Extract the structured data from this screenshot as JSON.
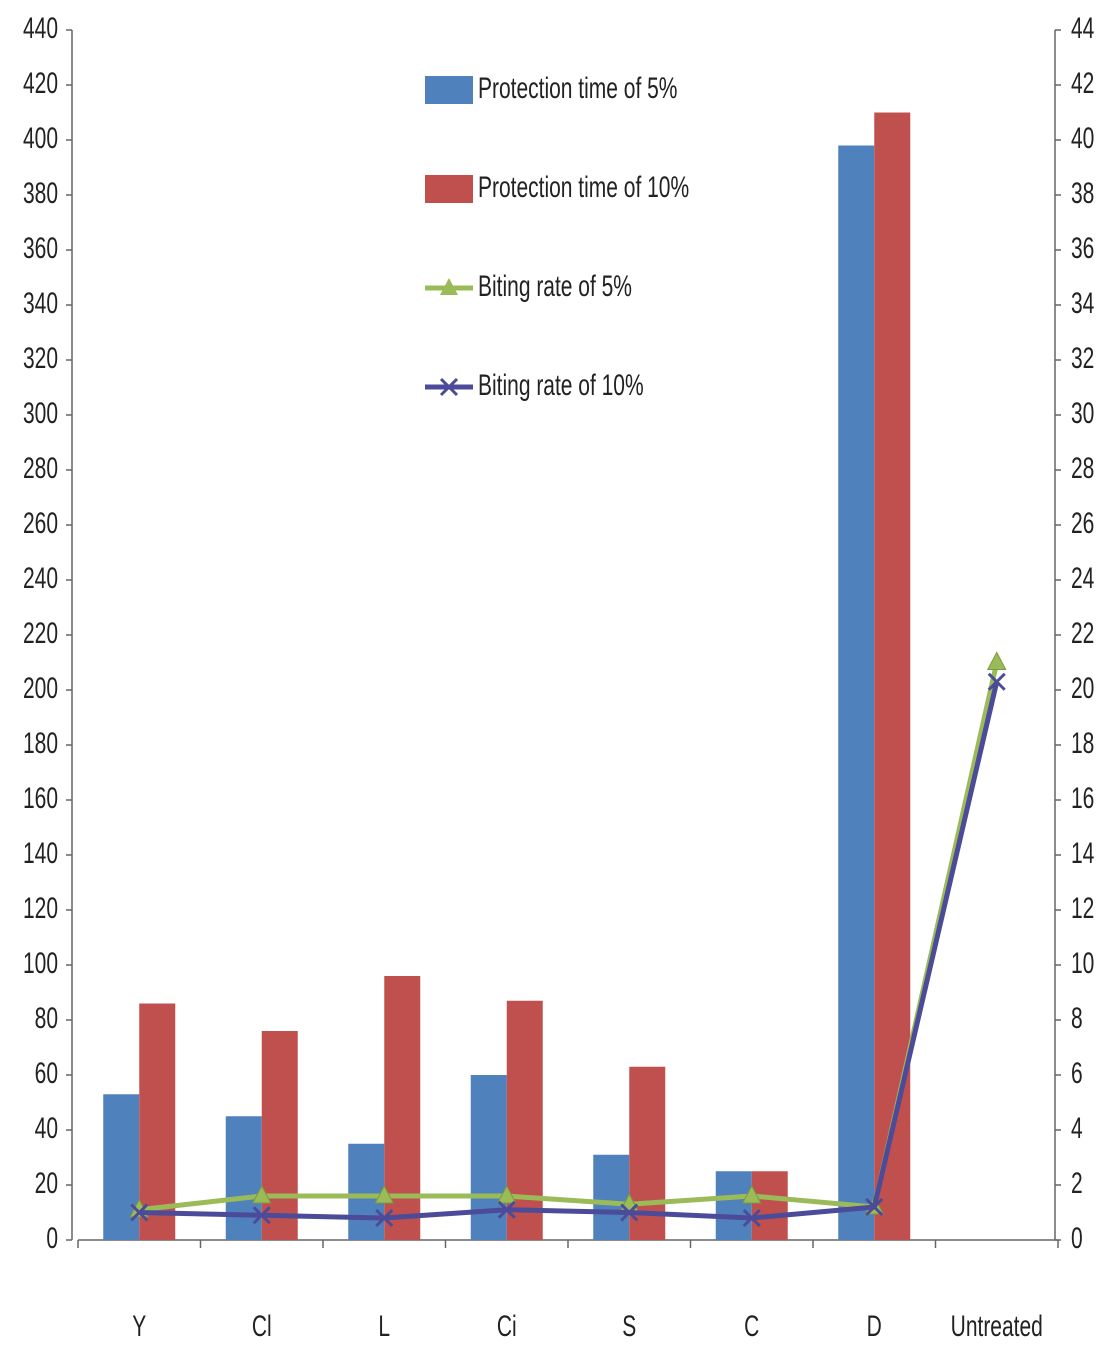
{
  "chart_data": {
    "type": "bar+line",
    "categories": [
      "Y",
      "Cl",
      "L",
      "Ci",
      "S",
      "C",
      "D",
      "Untreated"
    ],
    "series": [
      {
        "name": "Protection time of 5%",
        "type": "bar",
        "color": "#4f81bd",
        "values": [
          53,
          45,
          35,
          60,
          31,
          25,
          398,
          null
        ]
      },
      {
        "name": "Protection time of 10%",
        "type": "bar",
        "color": "#c0504d",
        "values": [
          86,
          76,
          96,
          87,
          63,
          25,
          410,
          null
        ]
      },
      {
        "name": "Biting rate of 5%",
        "type": "line",
        "axis": "y2",
        "marker": "triangle",
        "color": "#9bbb59",
        "values": [
          1.1,
          1.6,
          1.6,
          1.6,
          1.3,
          1.6,
          1.2,
          21
        ]
      },
      {
        "name": "Biting rate of 10%",
        "type": "line",
        "axis": "y2",
        "marker": "x",
        "color": "#4b4b9a",
        "values": [
          1.0,
          0.9,
          0.8,
          1.1,
          1.0,
          0.8,
          1.2,
          20.3
        ]
      }
    ],
    "ylim": [
      0,
      440
    ],
    "yticks": [
      0,
      20,
      40,
      60,
      80,
      100,
      120,
      140,
      160,
      180,
      200,
      220,
      240,
      260,
      280,
      300,
      320,
      340,
      360,
      380,
      400,
      420,
      440
    ],
    "y2lim": [
      0,
      44
    ],
    "y2ticks": [
      0,
      2,
      4,
      6,
      8,
      10,
      12,
      14,
      16,
      18,
      20,
      22,
      24,
      26,
      28,
      30,
      32,
      34,
      36,
      38,
      40,
      42,
      44
    ],
    "legend": "top-center",
    "grid": false
  }
}
